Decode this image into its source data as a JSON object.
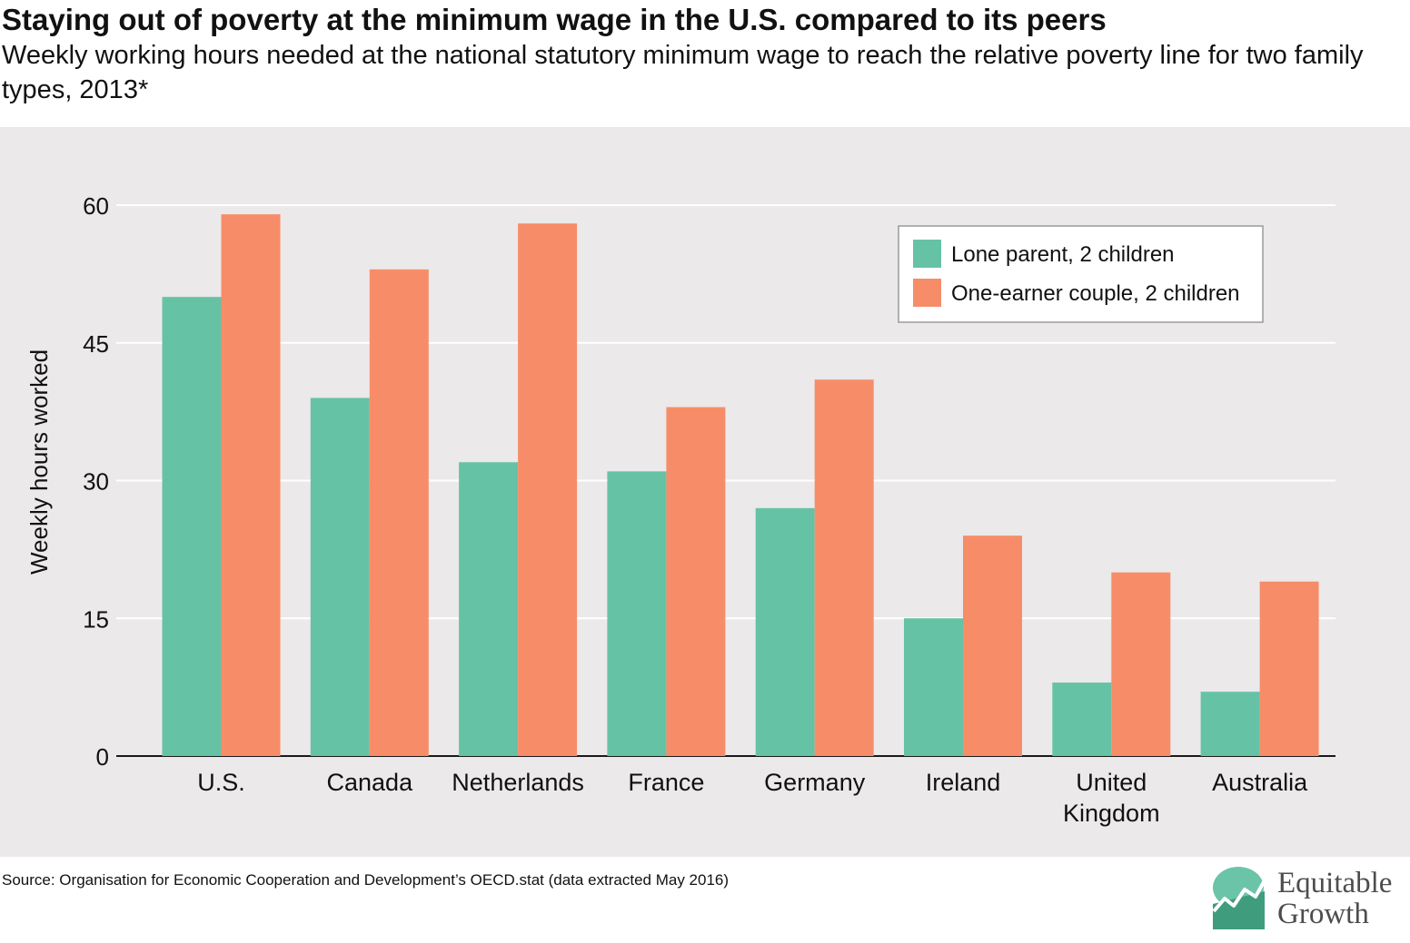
{
  "title": "Staying out of poverty at the minimum wage in the U.S. compared to its peers",
  "subtitle": "Weekly working hours needed at the national statutory minimum wage to reach the relative poverty line for two family types, 2013*",
  "source": "Source: Organisation for Economic Cooperation and Development’s OECD.stat (data extracted May 2016)",
  "brand": {
    "line1": "Equitable",
    "line2": "Growth"
  },
  "colors": {
    "panel": "#ebe9ea",
    "grid": "#ffffff",
    "lone": "#66c2a5",
    "couple": "#f78d68",
    "axis": "#1a1a1a"
  },
  "chart_data": {
    "type": "bar",
    "ylabel": "Weekly hours worked",
    "xlabel": "",
    "ylim": [
      0,
      60
    ],
    "yticks": [
      0,
      15,
      30,
      45,
      60
    ],
    "grid": true,
    "legend_position": "top-right",
    "categories": [
      [
        "U.S."
      ],
      [
        "Canada"
      ],
      [
        "Netherlands"
      ],
      [
        "France"
      ],
      [
        "Germany"
      ],
      [
        "Ireland"
      ],
      [
        "United",
        "Kingdom"
      ],
      [
        "Australia"
      ]
    ],
    "series": [
      {
        "name": "Lone parent, 2 children",
        "color": "#66c2a5",
        "values": [
          50,
          39,
          32,
          31,
          27,
          15,
          8,
          7
        ]
      },
      {
        "name": "One-earner couple, 2 children",
        "color": "#f78d68",
        "values": [
          59,
          53,
          58,
          38,
          41,
          24,
          20,
          19
        ]
      }
    ]
  }
}
